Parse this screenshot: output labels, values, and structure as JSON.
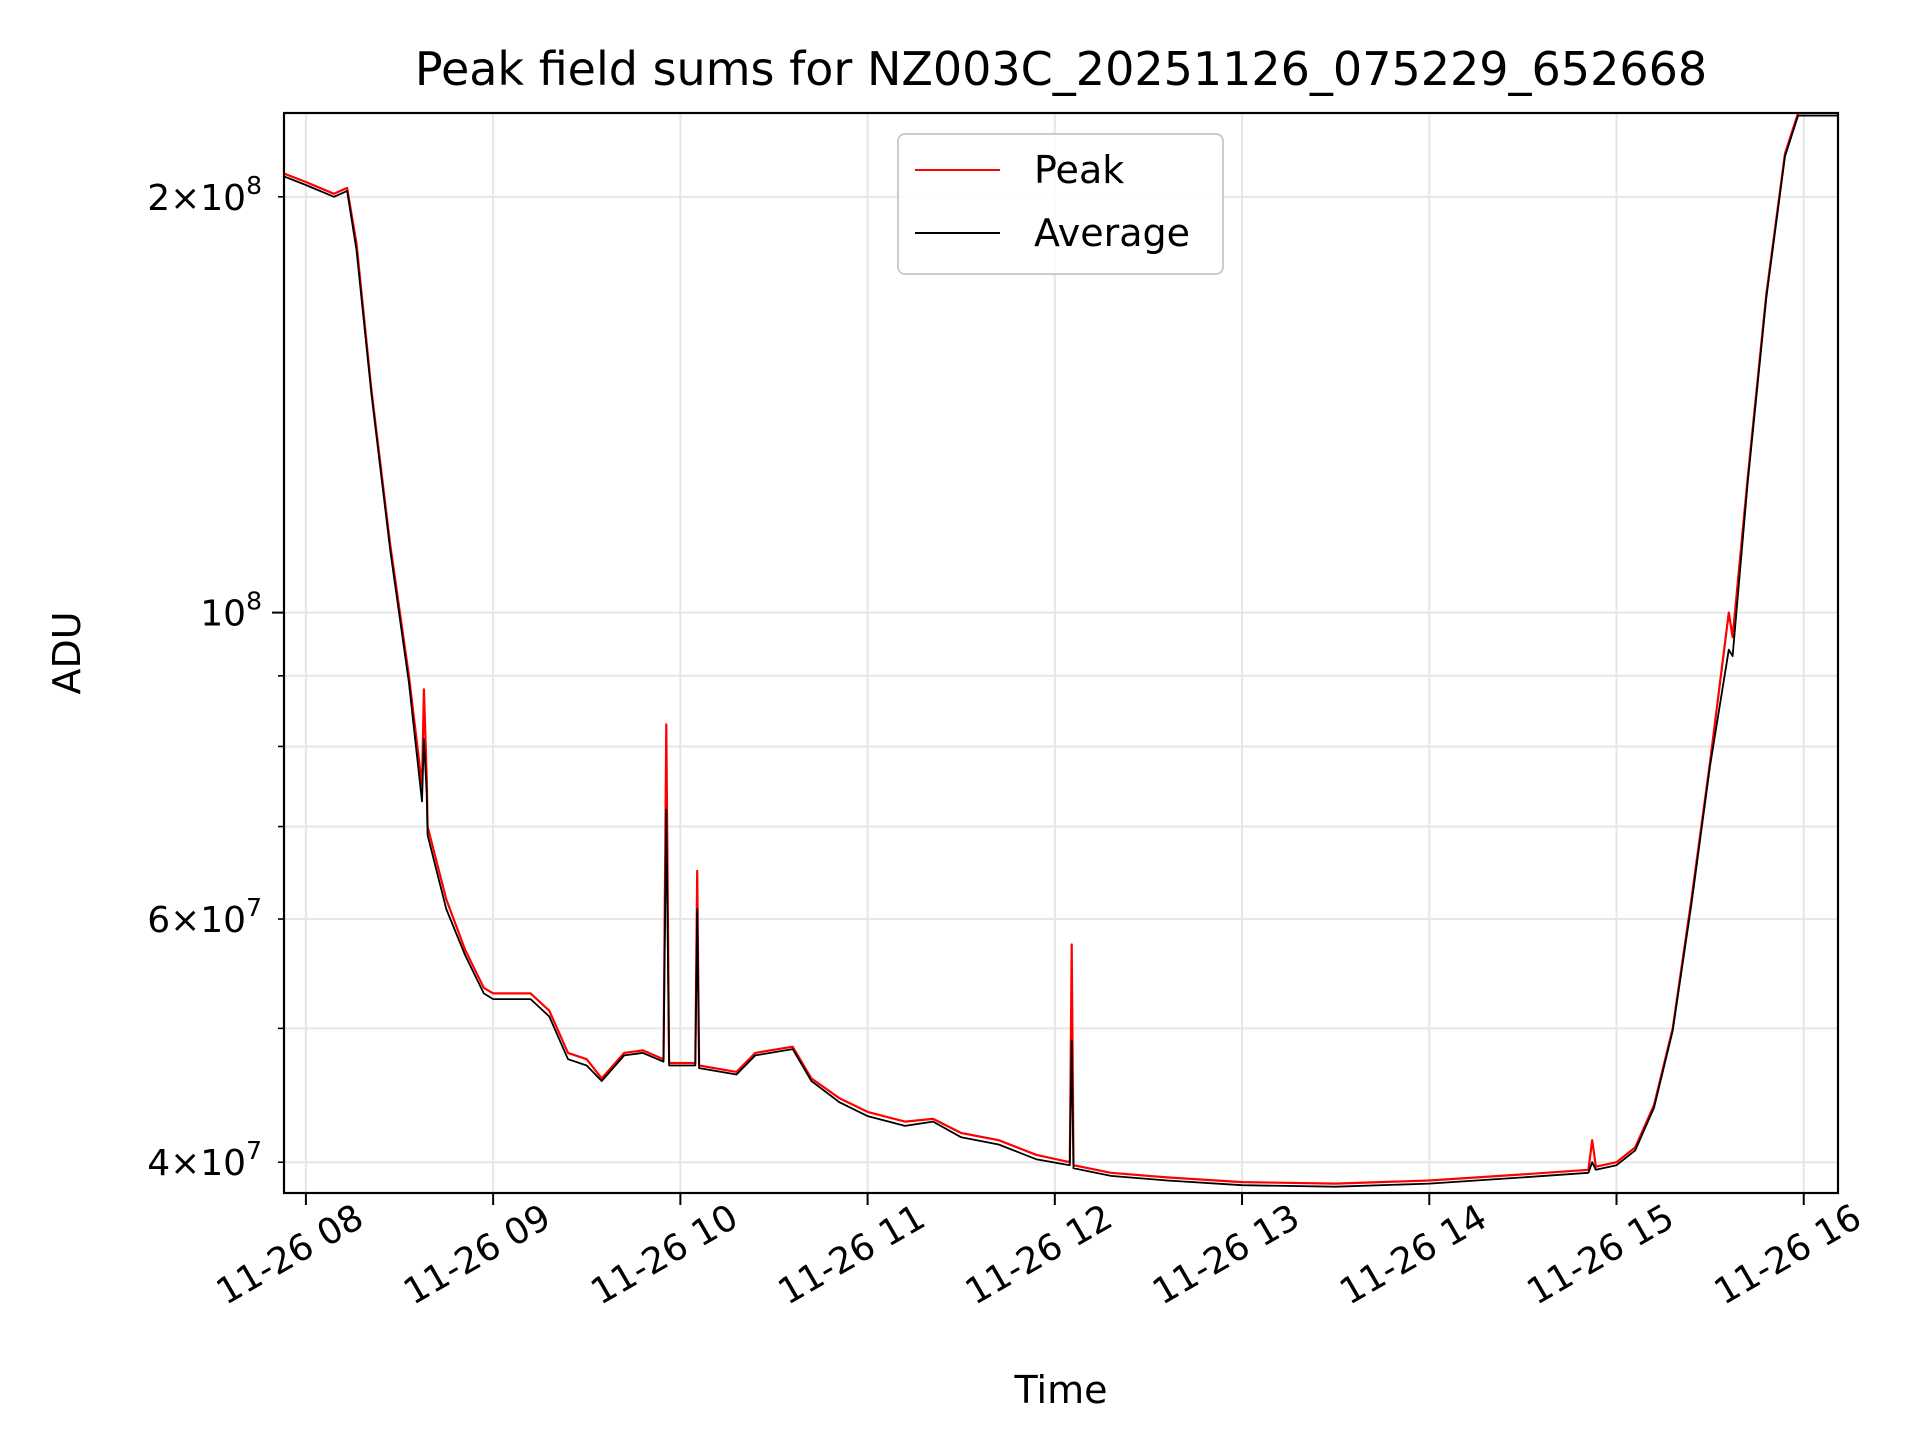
{
  "chart_data": {
    "type": "line",
    "title": "Peak field sums for NZ003C_20251126_075229_652668",
    "xlabel": "Time",
    "ylabel": "ADU",
    "yscale": "log",
    "ylim": [
      38000000,
      230000000
    ],
    "xlim_hours": [
      7.883,
      16.183
    ],
    "grid": true,
    "legend_position": "upper-center",
    "x_ticks": [
      {
        "hour": 8,
        "label": "11-26 08"
      },
      {
        "hour": 9,
        "label": "11-26 09"
      },
      {
        "hour": 10,
        "label": "11-26 10"
      },
      {
        "hour": 11,
        "label": "11-26 11"
      },
      {
        "hour": 12,
        "label": "11-26 12"
      },
      {
        "hour": 13,
        "label": "11-26 13"
      },
      {
        "hour": 14,
        "label": "11-26 14"
      },
      {
        "hour": 15,
        "label": "11-26 15"
      },
      {
        "hour": 16,
        "label": "11-26 16"
      }
    ],
    "y_major_ticks": [
      {
        "value": 100000000,
        "mantissa": "",
        "exp": "8"
      }
    ],
    "y_minor_ticks": [
      {
        "value": 40000000,
        "mantissa": "4",
        "exp": "7"
      },
      {
        "value": 60000000,
        "mantissa": "6",
        "exp": "7"
      },
      {
        "value": 200000000,
        "mantissa": "2",
        "exp": "8"
      }
    ],
    "y_minor_unlabeled": [
      50000000,
      70000000,
      80000000,
      90000000
    ],
    "series": [
      {
        "name": "Peak",
        "color": "#ff0000",
        "points": [
          [
            7.88,
            208000000
          ],
          [
            8.0,
            205000000
          ],
          [
            8.15,
            201000000
          ],
          [
            8.22,
            203000000
          ],
          [
            8.27,
            185000000
          ],
          [
            8.35,
            145000000
          ],
          [
            8.45,
            112000000
          ],
          [
            8.55,
            90000000
          ],
          [
            8.62,
            75000000
          ],
          [
            8.63,
            88000000
          ],
          [
            8.645,
            76000000
          ],
          [
            8.65,
            70000000
          ],
          [
            8.75,
            62000000
          ],
          [
            8.85,
            57000000
          ],
          [
            8.95,
            53500000
          ],
          [
            9.0,
            53000000
          ],
          [
            9.2,
            53000000
          ],
          [
            9.3,
            51500000
          ],
          [
            9.4,
            48000000
          ],
          [
            9.5,
            47500000
          ],
          [
            9.58,
            46000000
          ],
          [
            9.7,
            48000000
          ],
          [
            9.8,
            48200000
          ],
          [
            9.91,
            47500000
          ],
          [
            9.925,
            83000000
          ],
          [
            9.94,
            47200000
          ],
          [
            10.08,
            47200000
          ],
          [
            10.09,
            65000000
          ],
          [
            10.1,
            47000000
          ],
          [
            10.3,
            46500000
          ],
          [
            10.4,
            48000000
          ],
          [
            10.6,
            48500000
          ],
          [
            10.7,
            46000000
          ],
          [
            10.85,
            44500000
          ],
          [
            11.0,
            43500000
          ],
          [
            11.2,
            42800000
          ],
          [
            11.35,
            43000000
          ],
          [
            11.5,
            42000000
          ],
          [
            11.7,
            41500000
          ],
          [
            11.9,
            40500000
          ],
          [
            12.08,
            40000000
          ],
          [
            12.09,
            57500000
          ],
          [
            12.1,
            39800000
          ],
          [
            12.3,
            39300000
          ],
          [
            12.6,
            39000000
          ],
          [
            13.0,
            38700000
          ],
          [
            13.5,
            38600000
          ],
          [
            14.0,
            38800000
          ],
          [
            14.5,
            39200000
          ],
          [
            14.85,
            39500000
          ],
          [
            14.87,
            41500000
          ],
          [
            14.89,
            39700000
          ],
          [
            15.0,
            40000000
          ],
          [
            15.1,
            41000000
          ],
          [
            15.2,
            44000000
          ],
          [
            15.3,
            50000000
          ],
          [
            15.4,
            62000000
          ],
          [
            15.5,
            78000000
          ],
          [
            15.6,
            100000000
          ],
          [
            15.62,
            96000000
          ],
          [
            15.7,
            125000000
          ],
          [
            15.8,
            170000000
          ],
          [
            15.9,
            215000000
          ],
          [
            15.97,
            230000000
          ],
          [
            16.183,
            230000000
          ]
        ]
      },
      {
        "name": "Average",
        "color": "#000000",
        "points": [
          [
            7.88,
            207000000
          ],
          [
            8.0,
            204000000
          ],
          [
            8.15,
            200000000
          ],
          [
            8.22,
            202000000
          ],
          [
            8.27,
            183000000
          ],
          [
            8.35,
            144000000
          ],
          [
            8.45,
            111000000
          ],
          [
            8.55,
            89000000
          ],
          [
            8.62,
            73000000
          ],
          [
            8.63,
            81000000
          ],
          [
            8.645,
            74000000
          ],
          [
            8.65,
            69000000
          ],
          [
            8.75,
            61000000
          ],
          [
            8.85,
            56500000
          ],
          [
            8.95,
            53000000
          ],
          [
            9.0,
            52500000
          ],
          [
            9.2,
            52500000
          ],
          [
            9.3,
            51000000
          ],
          [
            9.4,
            47500000
          ],
          [
            9.5,
            47000000
          ],
          [
            9.58,
            45800000
          ],
          [
            9.7,
            47800000
          ],
          [
            9.8,
            48000000
          ],
          [
            9.91,
            47300000
          ],
          [
            9.925,
            72000000
          ],
          [
            9.94,
            47000000
          ],
          [
            10.08,
            47000000
          ],
          [
            10.09,
            61000000
          ],
          [
            10.1,
            46800000
          ],
          [
            10.3,
            46300000
          ],
          [
            10.4,
            47800000
          ],
          [
            10.6,
            48300000
          ],
          [
            10.7,
            45800000
          ],
          [
            10.85,
            44200000
          ],
          [
            11.0,
            43200000
          ],
          [
            11.2,
            42500000
          ],
          [
            11.35,
            42800000
          ],
          [
            11.5,
            41700000
          ],
          [
            11.7,
            41200000
          ],
          [
            11.9,
            40200000
          ],
          [
            12.08,
            39800000
          ],
          [
            12.09,
            49000000
          ],
          [
            12.1,
            39600000
          ],
          [
            12.3,
            39100000
          ],
          [
            12.6,
            38800000
          ],
          [
            13.0,
            38500000
          ],
          [
            13.5,
            38400000
          ],
          [
            14.0,
            38600000
          ],
          [
            14.5,
            39000000
          ],
          [
            14.85,
            39300000
          ],
          [
            14.87,
            40000000
          ],
          [
            14.89,
            39500000
          ],
          [
            15.0,
            39800000
          ],
          [
            15.1,
            40800000
          ],
          [
            15.2,
            43800000
          ],
          [
            15.3,
            49800000
          ],
          [
            15.4,
            61500000
          ],
          [
            15.5,
            77500000
          ],
          [
            15.6,
            94000000
          ],
          [
            15.62,
            93000000
          ],
          [
            15.7,
            124000000
          ],
          [
            15.8,
            169000000
          ],
          [
            15.9,
            214000000
          ],
          [
            15.97,
            229000000
          ],
          [
            16.183,
            229000000
          ]
        ]
      }
    ]
  }
}
